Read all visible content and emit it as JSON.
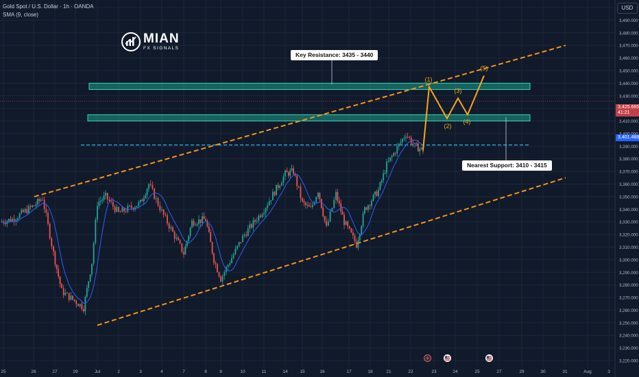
{
  "legend": {
    "symbol_line": "Gold Spot / U.S. Dollar · 1h · OANDA",
    "indicator_line": "SMA (9, close)"
  },
  "currency_label": "USD",
  "logo": {
    "name": "MIAN",
    "sub": "FX SIGNALS",
    "icon": "chart-bars-circle-icon"
  },
  "annotations": {
    "resistance_label": "Key Resistance: 3435 - 3440",
    "support_label": "Nearest Support: 3410 - 3415",
    "wave_labels": [
      "(1)",
      "(2)",
      "(3)",
      "(4)",
      "(5)"
    ]
  },
  "price_tags": {
    "last_price": "3,425.665",
    "countdown": "41:21",
    "sma_price": "3,401.488"
  },
  "events": [
    {
      "icon": "lightning-icon",
      "color": "#e05252"
    },
    {
      "icon": "us-flag-icon",
      "color": "#d9d9d9"
    },
    {
      "icon": "us-flag-icon",
      "color": "#d9d9d9"
    }
  ],
  "colors": {
    "background": "#101a2b",
    "grid": "#1c2738",
    "up_candle": "#26a69a",
    "down_candle": "#ef5350",
    "sma": "#2962ff",
    "zone_fill": "#1d9e8a",
    "zone_border": "#37d6b6",
    "channel": "#f7931a",
    "projection": "#f7a81b",
    "dashed_support": "#29b6f6",
    "price_line": "#c2404a"
  },
  "chart_data": {
    "type": "candlestick",
    "instrument": "Gold Spot / U.S. Dollar",
    "timeframe": "1h",
    "source": "OANDA",
    "y_axis": {
      "ticks": [
        "3,500.000",
        "3,490.000",
        "3,480.000",
        "3,470.000",
        "3,460.000",
        "3,450.000",
        "3,440.000",
        "3,430.000",
        "3,420.000",
        "3,410.000",
        "3,400.000",
        "3,390.000",
        "3,380.000",
        "3,370.000",
        "3,360.000",
        "3,350.000",
        "3,340.000",
        "3,330.000",
        "3,320.000",
        "3,310.000",
        "3,300.000",
        "3,290.000",
        "3,280.000",
        "3,270.000",
        "3,260.000",
        "3,250.000",
        "3,240.000",
        "3,230.000",
        "3,220.000"
      ],
      "range": [
        3215,
        3505
      ]
    },
    "x_axis": {
      "ticks": [
        "25",
        "26",
        "27",
        "29",
        "Jul",
        "2",
        "3",
        "4",
        "7",
        "8",
        "9",
        "10",
        "11",
        "14",
        "15",
        "16",
        "17",
        "18",
        "21",
        "22",
        "23",
        "24",
        "25",
        "27",
        "29",
        "30",
        "31",
        "Aug",
        "3"
      ]
    },
    "key_levels": {
      "resistance_zone": [
        3435,
        3440
      ],
      "support_zone": [
        3410,
        3415
      ],
      "dashed_level": 3391,
      "last_price": 3425.665,
      "sma_value": 3401.488
    },
    "channel": {
      "upper": [
        {
          "date": "Jun 26",
          "price": 3350
        },
        {
          "date": "Jul 28",
          "price": 3470
        }
      ],
      "lower": [
        {
          "date": "Jul 1",
          "price": 3248
        },
        {
          "date": "Jul 28",
          "price": 3365
        }
      ]
    },
    "projection": [
      {
        "label": "",
        "price": 3387
      },
      {
        "label": "(1)",
        "price": 3437
      },
      {
        "label": "(2)",
        "price": 3412
      },
      {
        "label": "(3)",
        "price": 3428
      },
      {
        "label": "(4)",
        "price": 3415
      },
      {
        "label": "(5)",
        "price": 3446
      }
    ],
    "price_path": [
      {
        "date": "Jun 24",
        "price": 3330
      },
      {
        "date": "Jun 25",
        "price": 3332
      },
      {
        "date": "Jun 26",
        "price": 3343
      },
      {
        "date": "Jun 26",
        "price": 3349
      },
      {
        "date": "Jun 27",
        "price": 3305
      },
      {
        "date": "Jun 27",
        "price": 3275
      },
      {
        "date": "Jun 30",
        "price": 3262
      },
      {
        "date": "Jun 30",
        "price": 3298
      },
      {
        "date": "Jul 1",
        "price": 3345
      },
      {
        "date": "Jul 1",
        "price": 3350
      },
      {
        "date": "Jul 2",
        "price": 3337
      },
      {
        "date": "Jul 3",
        "price": 3345
      },
      {
        "date": "Jul 3",
        "price": 3360
      },
      {
        "date": "Jul 4",
        "price": 3338
      },
      {
        "date": "Jul 7",
        "price": 3305
      },
      {
        "date": "Jul 7",
        "price": 3330
      },
      {
        "date": "Jul 8",
        "price": 3332
      },
      {
        "date": "Jul 8",
        "price": 3300
      },
      {
        "date": "Jul 9",
        "price": 3285
      },
      {
        "date": "Jul 10",
        "price": 3318
      },
      {
        "date": "Jul 11",
        "price": 3340
      },
      {
        "date": "Jul 14",
        "price": 3368
      },
      {
        "date": "Jul 14",
        "price": 3370
      },
      {
        "date": "Jul 15",
        "price": 3345
      },
      {
        "date": "Jul 15",
        "price": 3340
      },
      {
        "date": "Jul 16",
        "price": 3355
      },
      {
        "date": "Jul 16",
        "price": 3325
      },
      {
        "date": "Jul 17",
        "price": 3352
      },
      {
        "date": "Jul 17",
        "price": 3330
      },
      {
        "date": "Jul 18",
        "price": 3312
      },
      {
        "date": "Jul 18",
        "price": 3340
      },
      {
        "date": "Jul 21",
        "price": 3355
      },
      {
        "date": "Jul 21",
        "price": 3375
      },
      {
        "date": "Jul 22",
        "price": 3400
      },
      {
        "date": "Jul 22",
        "price": 3390
      },
      {
        "date": "Jul 22",
        "price": 3387
      }
    ]
  }
}
